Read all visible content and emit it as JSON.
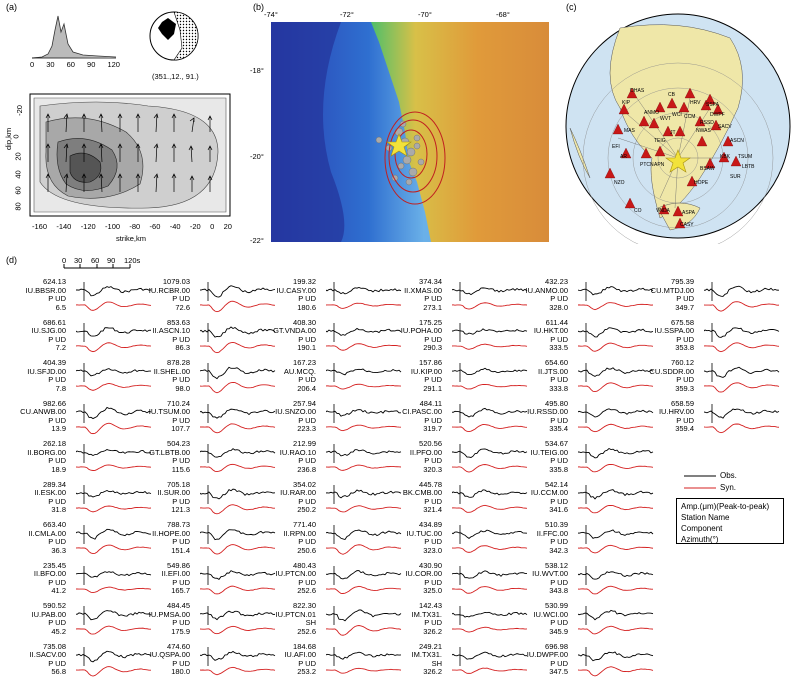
{
  "panel_labels": {
    "a": "(a)",
    "b": "(b)",
    "c": "(c)",
    "d": "(d)"
  },
  "panel_a": {
    "histogram_ticks": [
      "0",
      "30",
      "60",
      "90",
      "120"
    ],
    "mechanism_label": "(351.,12., 91.)",
    "y_ticks": [
      "-20",
      "0",
      "20",
      "40",
      "60",
      "80"
    ],
    "y_label": "dip,km",
    "x_ticks": [
      "-160",
      "-140",
      "-120",
      "-100",
      "-80",
      "-60",
      "-40",
      "-20",
      "0",
      "20"
    ],
    "x_label": "strike,km"
  },
  "panel_b": {
    "top_ticks": [
      "-74°",
      "-72°",
      "-70°",
      "-68°"
    ],
    "left_ticks": [
      "-18°",
      "-20°",
      "-22°"
    ]
  },
  "panel_c": {
    "stations": [
      "KIP",
      "OHAS",
      "MAS",
      "EFI",
      "AR",
      "PTCN",
      "APN",
      "NZO",
      "CO",
      "VNDA",
      "ASPA",
      "CASY",
      "HOPE",
      "BSAW",
      "SUR",
      "LBTB",
      "TSUM",
      "KBK",
      "ASCN",
      "SACV",
      "NWAS",
      "JT",
      "RSSD",
      "CCM",
      "WCI",
      "WVT",
      "HRV",
      "SSPA",
      "ANMO",
      "DWPF",
      "TEIG",
      "CB"
    ]
  },
  "panel_d": {
    "time_scale_ticks": [
      "0",
      "30",
      "60",
      "90",
      "120s"
    ],
    "columns": [
      [
        {
          "amp": "624.13",
          "name": "IU.BBSR.00",
          "comp": "P UD",
          "az": "6.5"
        },
        {
          "amp": "686.61",
          "name": "IU.SJG.00",
          "comp": "P UD",
          "az": "7.2"
        },
        {
          "amp": "404.39",
          "name": "IU.SFJD.00",
          "comp": "P UD",
          "az": "7.8"
        },
        {
          "amp": "982.66",
          "name": "CU.ANWB.00",
          "comp": "P UD",
          "az": "13.9"
        },
        {
          "amp": "262.18",
          "name": "II.BORG.00",
          "comp": "P UD",
          "az": "18.9"
        },
        {
          "amp": "289.34",
          "name": "II.ESK.00",
          "comp": "P UD",
          "az": "31.8"
        },
        {
          "amp": "663.40",
          "name": "II.CMLA.00",
          "comp": "P UD",
          "az": "36.3"
        },
        {
          "amp": "235.45",
          "name": "II.BFO.00",
          "comp": "P UD",
          "az": "41.2"
        },
        {
          "amp": "590.52",
          "name": "IU.PAB.00",
          "comp": "P UD",
          "az": "45.2"
        },
        {
          "amp": "735.08",
          "name": "II.SACV.00",
          "comp": "P UD",
          "az": "56.8"
        }
      ],
      [
        {
          "amp": "1079.03",
          "name": "IU.RCBR.00",
          "comp": "P UD",
          "az": "72.6"
        },
        {
          "amp": "853.63",
          "name": "II.ASCN.10",
          "comp": "P UD",
          "az": "86.3"
        },
        {
          "amp": "878.28",
          "name": "II.SHEL.00",
          "comp": "P UD",
          "az": "98.0"
        },
        {
          "amp": "710.24",
          "name": "IU.TSUM.00",
          "comp": "P UD",
          "az": "107.7"
        },
        {
          "amp": "504.23",
          "name": "GT.LBTB.00",
          "comp": "P UD",
          "az": "115.6"
        },
        {
          "amp": "705.18",
          "name": "II.SUR.00",
          "comp": "P UD",
          "az": "121.3"
        },
        {
          "amp": "788.73",
          "name": "II.HOPE.00",
          "comp": "P UD",
          "az": "151.4"
        },
        {
          "amp": "549.86",
          "name": "II.EFI.00",
          "comp": "P UD",
          "az": "165.7"
        },
        {
          "amp": "484.45",
          "name": "IU.PMSA.00",
          "comp": "P UD",
          "az": "175.9"
        },
        {
          "amp": "474.60",
          "name": "IU.QSPA.00",
          "comp": "P UD",
          "az": "180.0"
        }
      ],
      [
        {
          "amp": "199.32",
          "name": "IU.CASY.00",
          "comp": "P UD",
          "az": "180.6"
        },
        {
          "amp": "408.30",
          "name": "GT.VNDA.00",
          "comp": "P UD",
          "az": "190.1"
        },
        {
          "amp": "167.23",
          "name": "AU.MCQ.",
          "comp": "P UD",
          "az": "206.4"
        },
        {
          "amp": "257.94",
          "name": "IU.SNZO.00",
          "comp": "P UD",
          "az": "223.3"
        },
        {
          "amp": "212.99",
          "name": "IU.RAO.10",
          "comp": "P UD",
          "az": "236.8"
        },
        {
          "amp": "354.02",
          "name": "IU.RAR.00",
          "comp": "P UD",
          "az": "250.2"
        },
        {
          "amp": "771.40",
          "name": "II.RPN.00",
          "comp": "P UD",
          "az": "250.6"
        },
        {
          "amp": "480.43",
          "name": "IU.PTCN.00",
          "comp": "P UD",
          "az": "252.6"
        },
        {
          "amp": "822.30",
          "name": "IU.PTCN.01",
          "comp": "SH",
          "az": "252.6"
        },
        {
          "amp": "184.68",
          "name": "IU.AFI.00",
          "comp": "P UD",
          "az": "253.2"
        }
      ],
      [
        {
          "amp": "374.34",
          "name": "II.XMAS.00",
          "comp": "P UD",
          "az": "273.1"
        },
        {
          "amp": "175.25",
          "name": "IU.POHA.00",
          "comp": "P UD",
          "az": "290.3"
        },
        {
          "amp": "157.86",
          "name": "IU.KIP.00",
          "comp": "P UD",
          "az": "291.1"
        },
        {
          "amp": "484.11",
          "name": "CI.PASC.00",
          "comp": "P UD",
          "az": "319.7"
        },
        {
          "amp": "520.56",
          "name": "II.PFO.00",
          "comp": "P UD",
          "az": "320.3"
        },
        {
          "amp": "445.78",
          "name": "BK.CMB.00",
          "comp": "P UD",
          "az": "321.4"
        },
        {
          "amp": "434.89",
          "name": "IU.TUC.00",
          "comp": "P UD",
          "az": "323.0"
        },
        {
          "amp": "430.90",
          "name": "IU.COR.00",
          "comp": "P UD",
          "az": "325.0"
        },
        {
          "amp": "142.43",
          "name": "IM.TX31.",
          "comp": "P UD",
          "az": "326.2"
        },
        {
          "amp": "249.21",
          "name": "IM.TX31.",
          "comp": "SH",
          "az": "326.2"
        }
      ],
      [
        {
          "amp": "432.23",
          "name": "IU.ANMO.00",
          "comp": "P UD",
          "az": "328.0"
        },
        {
          "amp": "611.44",
          "name": "IU.HKT.00",
          "comp": "P UD",
          "az": "333.5"
        },
        {
          "amp": "654.60",
          "name": "II.JTS.00",
          "comp": "P UD",
          "az": "333.8"
        },
        {
          "amp": "495.80",
          "name": "IU.RSSD.00",
          "comp": "P UD",
          "az": "335.4"
        },
        {
          "amp": "534.67",
          "name": "IU.TEIG.00",
          "comp": "P UD",
          "az": "335.8"
        },
        {
          "amp": "542.14",
          "name": "IU.CCM.00",
          "comp": "P UD",
          "az": "341.6"
        },
        {
          "amp": "510.39",
          "name": "II.FFC.00",
          "comp": "P UD",
          "az": "342.3"
        },
        {
          "amp": "538.12",
          "name": "IU.WVT.00",
          "comp": "P UD",
          "az": "343.8"
        },
        {
          "amp": "530.99",
          "name": "IU.WCI.00",
          "comp": "P UD",
          "az": "345.9"
        },
        {
          "amp": "696.98",
          "name": "IU.DWPF.00",
          "comp": "P UD",
          "az": "347.5"
        }
      ],
      [
        {
          "amp": "795.39",
          "name": "CU.MTDJ.00",
          "comp": "P UD",
          "az": "349.7"
        },
        {
          "amp": "675.58",
          "name": "IU.SSPA.00",
          "comp": "P UD",
          "az": "353.8"
        },
        {
          "amp": "760.12",
          "name": "CU.SDDR.00",
          "comp": "P UD",
          "az": "359.3"
        },
        {
          "amp": "658.59",
          "name": "IU.HRV.00",
          "comp": "P UD",
          "az": "359.4"
        }
      ]
    ],
    "legend": {
      "obs": "Obs.",
      "syn": "Syn.",
      "lines": [
        "Amp.(μm)(Peak-to-peak)",
        "Station Name",
        "Component",
        "Azimuth(°)"
      ]
    },
    "colors": {
      "obs": "#000000",
      "syn": "#d42020"
    }
  }
}
